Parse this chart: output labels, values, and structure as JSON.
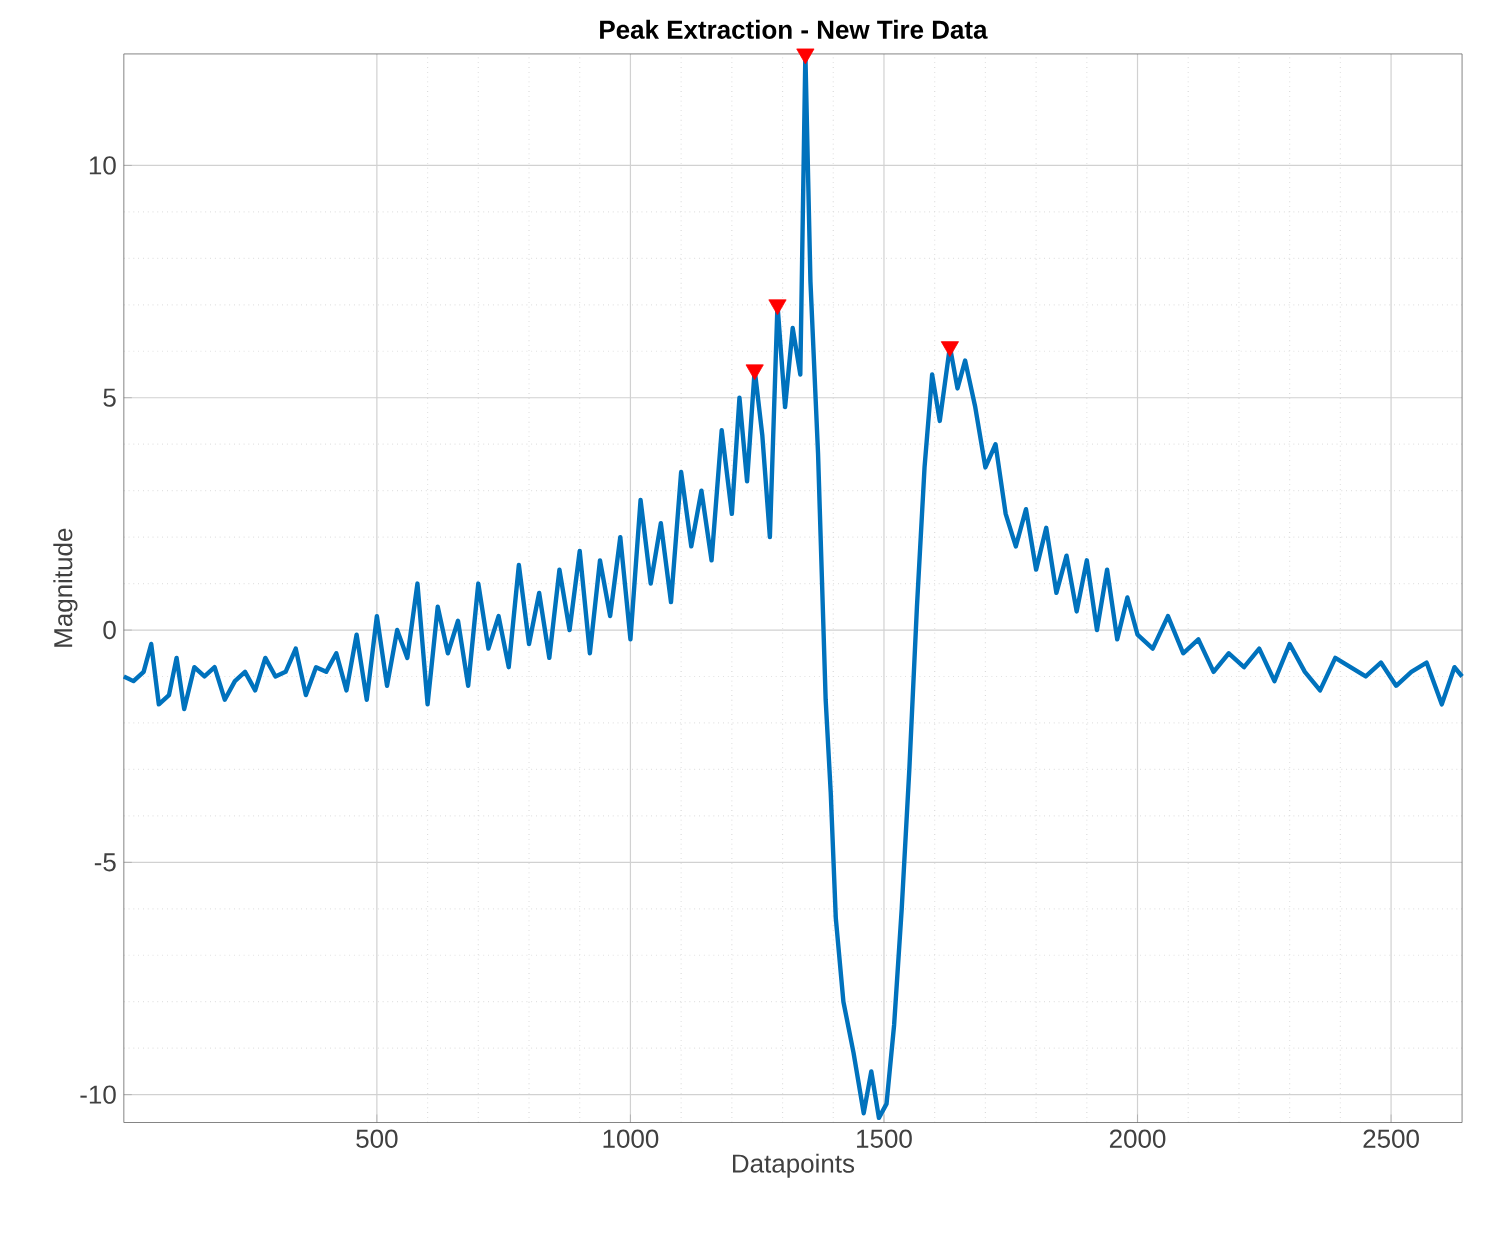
{
  "chart_data": {
    "type": "line",
    "title": "Peak Extraction - New Tire Data",
    "xlabel": "Datapoints",
    "ylabel": "Magnitude",
    "xlim": [
      1,
      2640
    ],
    "ylim": [
      -10.6,
      12.4
    ],
    "xticks": [
      500,
      1000,
      1500,
      2000,
      2500
    ],
    "yticks": [
      -10,
      -5,
      0,
      5,
      10
    ],
    "grid": true,
    "series": [
      {
        "color": "#0072bd",
        "marker": "none",
        "x": [
          1,
          20,
          40,
          55,
          70,
          90,
          105,
          120,
          140,
          160,
          180,
          200,
          220,
          240,
          260,
          280,
          300,
          320,
          340,
          360,
          380,
          400,
          420,
          440,
          460,
          480,
          500,
          520,
          540,
          560,
          580,
          600,
          620,
          640,
          660,
          680,
          700,
          720,
          740,
          760,
          780,
          800,
          820,
          840,
          860,
          880,
          900,
          920,
          940,
          960,
          980,
          1000,
          1020,
          1040,
          1060,
          1080,
          1100,
          1120,
          1140,
          1160,
          1180,
          1200,
          1215,
          1230,
          1245,
          1260,
          1275,
          1290,
          1305,
          1320,
          1335,
          1345,
          1355,
          1370,
          1385,
          1395,
          1405,
          1420,
          1440,
          1460,
          1475,
          1490,
          1505,
          1520,
          1535,
          1550,
          1565,
          1580,
          1595,
          1610,
          1630,
          1645,
          1660,
          1680,
          1700,
          1720,
          1740,
          1760,
          1780,
          1800,
          1820,
          1840,
          1860,
          1880,
          1900,
          1920,
          1940,
          1960,
          1980,
          2000,
          2030,
          2060,
          2090,
          2120,
          2150,
          2180,
          2210,
          2240,
          2270,
          2300,
          2330,
          2360,
          2390,
          2420,
          2450,
          2480,
          2510,
          2540,
          2570,
          2600,
          2625,
          2640
        ],
        "values": [
          -1.0,
          -1.1,
          -0.9,
          -0.3,
          -1.6,
          -1.4,
          -0.6,
          -1.7,
          -0.8,
          -1.0,
          -0.8,
          -1.5,
          -1.1,
          -0.9,
          -1.3,
          -0.6,
          -1.0,
          -0.9,
          -0.4,
          -1.4,
          -0.8,
          -0.9,
          -0.5,
          -1.3,
          -0.1,
          -1.5,
          0.3,
          -1.2,
          0.0,
          -0.6,
          1.0,
          -1.6,
          0.5,
          -0.5,
          0.2,
          -1.2,
          1.0,
          -0.4,
          0.3,
          -0.8,
          1.4,
          -0.3,
          0.8,
          -0.6,
          1.3,
          0.0,
          1.7,
          -0.5,
          1.5,
          0.3,
          2.0,
          -0.2,
          2.8,
          1.0,
          2.3,
          0.6,
          3.4,
          1.8,
          3.0,
          1.5,
          4.3,
          2.5,
          5.0,
          3.2,
          5.6,
          4.2,
          2.0,
          7.0,
          4.8,
          6.5,
          5.5,
          12.4,
          7.5,
          3.8,
          -1.5,
          -3.5,
          -6.2,
          -8.0,
          -9.1,
          -10.4,
          -9.5,
          -10.5,
          -10.2,
          -8.5,
          -6.0,
          -3.0,
          0.5,
          3.5,
          5.5,
          4.5,
          6.1,
          5.2,
          5.8,
          4.8,
          3.5,
          4.0,
          2.5,
          1.8,
          2.6,
          1.3,
          2.2,
          0.8,
          1.6,
          0.4,
          1.5,
          0.0,
          1.3,
          -0.2,
          0.7,
          -0.1,
          -0.4,
          0.3,
          -0.5,
          -0.2,
          -0.9,
          -0.5,
          -0.8,
          -0.4,
          -1.1,
          -0.3,
          -0.9,
          -1.3,
          -0.6,
          -0.8,
          -1.0,
          -0.7,
          -1.2,
          -0.9,
          -0.7,
          -1.6,
          -0.8,
          -1.0
        ]
      },
      {
        "type": "scatter",
        "color": "#ff0000",
        "marker": "triangle",
        "x": [
          1245,
          1290,
          1345,
          1630
        ],
        "values": [
          5.6,
          7.0,
          12.4,
          6.1
        ]
      }
    ]
  }
}
